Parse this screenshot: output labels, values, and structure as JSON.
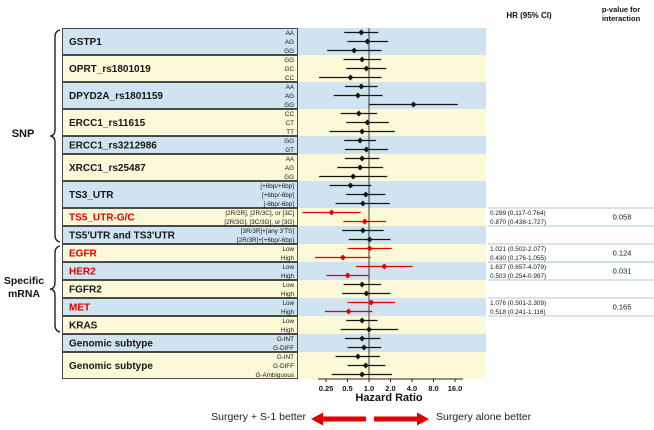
{
  "header": {
    "hr_col": "HR (95% CI)",
    "pval_col": "p-value for interaction"
  },
  "side": {
    "snp_label": "SNP",
    "mrna_label": "Specific mRNA"
  },
  "footer": {
    "xlabel": "Hazard Ratio",
    "left_label": "Surgery + S-1 better",
    "right_label": "Surgery alone better"
  },
  "colors": {
    "stripe_blue": "#cfe3f0",
    "stripe_yellow": "#fcf9d8",
    "red": "#e00000",
    "black": "#161616",
    "separator_blue": "#8fb8d8"
  },
  "chart_data": {
    "type": "forest",
    "title": "",
    "xlabel": "Hazard Ratio",
    "x_scale": "log2",
    "ref_line": 1.0,
    "x_ticks": [
      0.25,
      0.5,
      1.0,
      2.0,
      4.0,
      8.0,
      16.0
    ],
    "x_tick_labels": [
      "0.25",
      "0.5",
      "1.0",
      "2.0",
      "4.0",
      "8.0",
      "16.0"
    ],
    "groups": [
      {
        "label": "GSTP1",
        "red": false,
        "stripe": "blue",
        "rows": [
          {
            "sub": "AA",
            "hr": 0.78,
            "lo": 0.45,
            "hi": 1.35
          },
          {
            "sub": "AG",
            "hr": 0.95,
            "lo": 0.5,
            "hi": 1.85
          },
          {
            "sub": "GG",
            "hr": 0.62,
            "lo": 0.26,
            "hi": 1.5
          }
        ]
      },
      {
        "label": "OPRT_rs1801019",
        "red": false,
        "stripe": "yellow",
        "rows": [
          {
            "sub": "GG",
            "hr": 0.8,
            "lo": 0.44,
            "hi": 1.48
          },
          {
            "sub": "GC",
            "hr": 0.92,
            "lo": 0.48,
            "hi": 1.75
          },
          {
            "sub": "CC",
            "hr": 0.55,
            "lo": 0.2,
            "hi": 1.5
          }
        ]
      },
      {
        "label": "DPYD2A_rs1801159",
        "red": false,
        "stripe": "blue",
        "rows": [
          {
            "sub": "AA",
            "hr": 0.78,
            "lo": 0.46,
            "hi": 1.32
          },
          {
            "sub": "AG",
            "hr": 0.7,
            "lo": 0.32,
            "hi": 1.55
          },
          {
            "sub": "GG",
            "hr": 4.2,
            "lo": 1.0,
            "hi": 17.5
          }
        ]
      },
      {
        "label": "ERCC1_rs11615",
        "red": false,
        "stripe": "yellow",
        "rows": [
          {
            "sub": "CC",
            "hr": 0.72,
            "lo": 0.4,
            "hi": 1.3
          },
          {
            "sub": "CT",
            "hr": 0.95,
            "lo": 0.48,
            "hi": 1.9
          },
          {
            "sub": "TT",
            "hr": 0.8,
            "lo": 0.28,
            "hi": 2.3
          }
        ]
      },
      {
        "label": "ERCC1_rs3212986",
        "red": false,
        "stripe": "blue",
        "rows": [
          {
            "sub": "GG",
            "hr": 0.75,
            "lo": 0.45,
            "hi": 1.25
          },
          {
            "sub": "GT",
            "hr": 0.92,
            "lo": 0.46,
            "hi": 1.85
          }
        ]
      },
      {
        "label": "XRCC1_rs25487",
        "red": false,
        "stripe": "yellow",
        "rows": [
          {
            "sub": "AA",
            "hr": 0.8,
            "lo": 0.46,
            "hi": 1.4
          },
          {
            "sub": "AG",
            "hr": 0.75,
            "lo": 0.36,
            "hi": 1.58
          },
          {
            "sub": "GG",
            "hr": 0.6,
            "lo": 0.2,
            "hi": 1.8
          }
        ]
      },
      {
        "label": "TS3_UTR",
        "red": false,
        "stripe": "blue",
        "rows": [
          {
            "sub": "[+6bp/+6bp]",
            "hr": 0.55,
            "lo": 0.28,
            "hi": 1.08
          },
          {
            "sub": "[+6bp/-6bp]",
            "hr": 0.9,
            "lo": 0.48,
            "hi": 1.7
          },
          {
            "sub": "[-6bp/-6bp]",
            "hr": 0.82,
            "lo": 0.34,
            "hi": 1.95
          }
        ]
      },
      {
        "label": "TS5_UTR-G/C",
        "red": true,
        "stripe": "yellow",
        "p_value": "0.058",
        "rows": [
          {
            "sub": "[2R/2R], [2R/3C], or [3C]",
            "hr": 0.299,
            "lo": 0.117,
            "hi": 0.764,
            "hr_text": "0.299 (0.117-0.764)"
          },
          {
            "sub": "[2R/3G], [3C/3G], or [3G]",
            "hr": 0.87,
            "lo": 0.438,
            "hi": 1.727,
            "hr_text": "0.870 (0.438-1.727)"
          }
        ]
      },
      {
        "label": "TS5'UTR and TS3'UTR",
        "red": false,
        "stripe": "blue",
        "rows": [
          {
            "sub": "[3R/3R]+[any 3'TS]",
            "hr": 0.82,
            "lo": 0.42,
            "hi": 1.6
          },
          {
            "sub": "[2R/3R]+[+6bp/-6bp]",
            "hr": 1.02,
            "lo": 0.52,
            "hi": 2.0
          }
        ]
      },
      {
        "label": "EGFR",
        "red": true,
        "stripe": "yellow",
        "p_value": "0.124",
        "rows": [
          {
            "sub": "Low",
            "hr": 1.021,
            "lo": 0.502,
            "hi": 2.077,
            "hr_text": "1.021 (0.502-2.077)"
          },
          {
            "sub": "High",
            "hr": 0.43,
            "lo": 0.176,
            "hi": 1.055,
            "hr_text": "0.430 (0.176-1.055)"
          }
        ]
      },
      {
        "label": "HER2",
        "red": true,
        "stripe": "blue",
        "p_value": "0.031",
        "rows": [
          {
            "sub": "Low",
            "hr": 1.637,
            "lo": 0.657,
            "hi": 4.079,
            "hr_text": "1.637 (0.657-4.079)"
          },
          {
            "sub": "High",
            "hr": 0.503,
            "lo": 0.254,
            "hi": 0.997,
            "hr_text": "0.503 (0.254-0.997)"
          }
        ]
      },
      {
        "label": "FGFR2",
        "red": false,
        "stripe": "yellow",
        "rows": [
          {
            "sub": "Low",
            "hr": 0.8,
            "lo": 0.44,
            "hi": 1.48
          },
          {
            "sub": "High",
            "hr": 0.92,
            "lo": 0.42,
            "hi": 2.0
          }
        ]
      },
      {
        "label": "MET",
        "red": true,
        "stripe": "blue",
        "p_value": "0.165",
        "rows": [
          {
            "sub": "Low",
            "hr": 1.076,
            "lo": 0.501,
            "hi": 2.309,
            "hr_text": "1.076 (0.501-2.309)"
          },
          {
            "sub": "High",
            "hr": 0.518,
            "lo": 0.241,
            "hi": 1.116,
            "hr_text": "0.518 (0.241-1.116)"
          }
        ]
      },
      {
        "label": "KRAS",
        "red": false,
        "stripe": "yellow",
        "rows": [
          {
            "sub": "Low",
            "hr": 0.8,
            "lo": 0.48,
            "hi": 1.32
          },
          {
            "sub": "High",
            "hr": 1.0,
            "lo": 0.4,
            "hi": 2.55
          }
        ]
      },
      {
        "label": "Genomic subtype",
        "red": false,
        "stripe": "blue",
        "rows": [
          {
            "sub": "G-INT",
            "hr": 0.8,
            "lo": 0.46,
            "hi": 1.45
          },
          {
            "sub": "G-DIFF",
            "hr": 0.85,
            "lo": 0.5,
            "hi": 1.48
          }
        ]
      },
      {
        "label": "Genomic subtype",
        "red": false,
        "stripe": "yellow",
        "rows": [
          {
            "sub": "G-INT",
            "hr": 0.7,
            "lo": 0.34,
            "hi": 1.42
          },
          {
            "sub": "G-DIFF",
            "hr": 0.9,
            "lo": 0.5,
            "hi": 1.7
          },
          {
            "sub": "G-Ambiguous",
            "hr": 0.8,
            "lo": 0.3,
            "hi": 2.1
          }
        ]
      }
    ]
  }
}
